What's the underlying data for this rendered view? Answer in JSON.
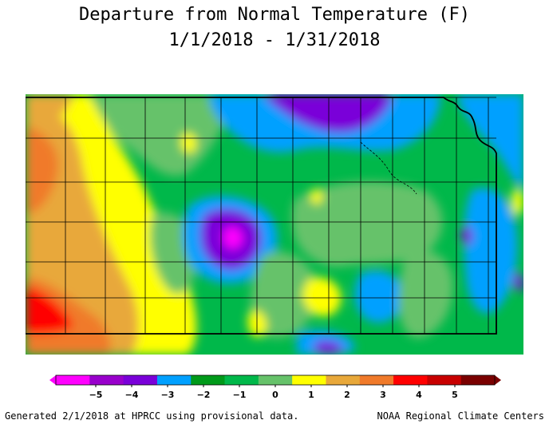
{
  "title": "Departure from Normal Temperature (F)",
  "date_range": "1/1/2018 - 1/31/2018",
  "legend": {
    "units": "F",
    "min": -5,
    "max": 5,
    "tick_labels": [
      "-5",
      "-4",
      "-3",
      "-2",
      "-1",
      "0",
      "1",
      "2",
      "3",
      "4",
      "5"
    ],
    "colors": [
      "#ff00ff",
      "#9900cc",
      "#7a00d9",
      "#00a0ff",
      "#009a1a",
      "#00b84a",
      "#66c26a",
      "#ffff00",
      "#e8a83a",
      "#f07a2a",
      "#ff0000",
      "#c80000",
      "#7a0000"
    ]
  },
  "map_layers": {
    "state_boundaries": "Kansas",
    "county_lines": true
  },
  "footer": {
    "left": "Generated 2/1/2018 at HPRCC using provisional data.",
    "right": "NOAA Regional Climate Centers"
  }
}
